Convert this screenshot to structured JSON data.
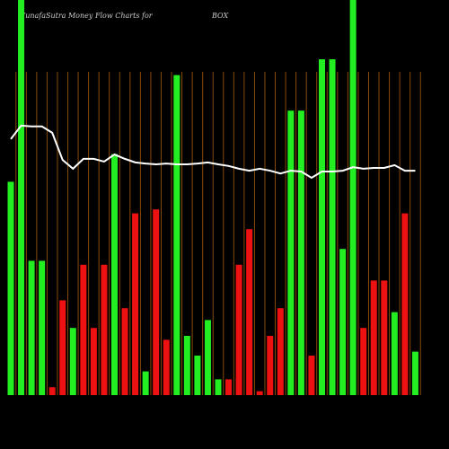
{
  "chart_data": {
    "type": "bar",
    "title": "MunafaSutra  Money Flow  Charts for",
    "symbol": "BOX",
    "ylim": [
      0,
      100
    ],
    "values": [
      54,
      100,
      34,
      34,
      2,
      24,
      17,
      33,
      17,
      33,
      61,
      22,
      46,
      6,
      47,
      14,
      81,
      15,
      10,
      19,
      4,
      4,
      33,
      42,
      1,
      15,
      22,
      72,
      72,
      10,
      85,
      85,
      37,
      100,
      17,
      29,
      29,
      21,
      46,
      11
    ],
    "colors": [
      "#22ee22",
      "#22ee22",
      "#22ee22",
      "#22ee22",
      "#ee1111",
      "#ee1111",
      "#22ee22",
      "#ee1111",
      "#ee1111",
      "#ee1111",
      "#22ee22",
      "#ee1111",
      "#ee1111",
      "#22ee22",
      "#ee1111",
      "#ee1111",
      "#22ee22",
      "#22ee22",
      "#22ee22",
      "#22ee22",
      "#22ee22",
      "#ee1111",
      "#ee1111",
      "#ee1111",
      "#ee1111",
      "#ee1111",
      "#ee1111",
      "#22ee22",
      "#22ee22",
      "#ee1111",
      "#22ee22",
      "#22ee22",
      "#22ee22",
      "#22ee22",
      "#ee1111",
      "#ee1111",
      "#ee1111",
      "#22ee22",
      "#ee1111",
      "#22ee22"
    ],
    "line": {
      "color": "#ffffff",
      "values": [
        64.8,
        68.2,
        68,
        68,
        66.4,
        59.5,
        57.3,
        59.8,
        59.8,
        59.1,
        60.9,
        59.8,
        58.9,
        58.6,
        58.4,
        58.6,
        58.4,
        58.4,
        58.6,
        58.9,
        58.4,
        58,
        57.3,
        56.8,
        57.3,
        56.8,
        56.1,
        56.8,
        56.6,
        55,
        56.6,
        56.6,
        56.8,
        57.7,
        57.3,
        57.5,
        57.5,
        58.2,
        56.8,
        56.8
      ]
    }
  }
}
